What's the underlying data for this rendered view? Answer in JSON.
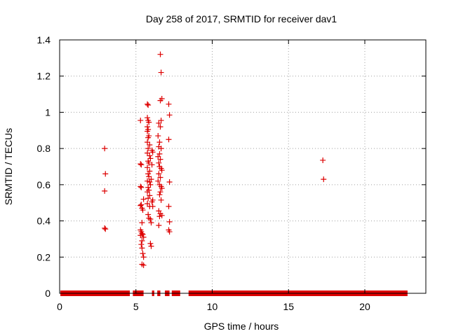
{
  "chart_data": {
    "type": "scatter",
    "title": "Day 258 of 2017, SRMTID for receiver dav1",
    "xlabel": "GPS time / hours",
    "ylabel": "SRMTID / TECUs",
    "xlim": [
      0,
      24
    ],
    "ylim": [
      0,
      1.4
    ],
    "xticks": [
      0,
      5,
      10,
      15,
      20
    ],
    "yticks": [
      0,
      0.2,
      0.4,
      0.6,
      0.8,
      1,
      1.2,
      1.4
    ],
    "xtick_labels": [
      "0",
      "5",
      "10",
      "15",
      "20"
    ],
    "ytick_labels": [
      "0",
      "0.2",
      "0.4",
      "0.6",
      "0.8",
      "1",
      "1.2",
      "1.4"
    ],
    "grid": true,
    "legend": false,
    "marker": "+",
    "color": "#dd0000",
    "baseline_zero_intervals": [
      [
        0.05,
        4.6
      ],
      [
        4.8,
        5.5
      ],
      [
        6.05,
        6.2
      ],
      [
        6.4,
        6.6
      ],
      [
        6.9,
        7.2
      ],
      [
        7.35,
        7.9
      ],
      [
        8.45,
        22.8
      ]
    ],
    "points": [
      [
        2.95,
        0.8
      ],
      [
        3.0,
        0.66
      ],
      [
        2.95,
        0.565
      ],
      [
        2.95,
        0.36
      ],
      [
        3.0,
        0.355
      ],
      [
        5.3,
        0.955
      ],
      [
        5.3,
        0.715
      ],
      [
        5.35,
        0.71
      ],
      [
        5.3,
        0.59
      ],
      [
        5.35,
        0.585
      ],
      [
        5.35,
        0.49
      ],
      [
        5.3,
        0.485
      ],
      [
        5.4,
        0.47
      ],
      [
        5.45,
        0.46
      ],
      [
        5.5,
        0.52
      ],
      [
        5.4,
        0.39
      ],
      [
        5.3,
        0.35
      ],
      [
        5.35,
        0.34
      ],
      [
        5.4,
        0.33
      ],
      [
        5.45,
        0.325
      ],
      [
        5.3,
        0.32
      ],
      [
        5.5,
        0.31
      ],
      [
        5.4,
        0.29
      ],
      [
        5.35,
        0.27
      ],
      [
        5.4,
        0.25
      ],
      [
        5.45,
        0.22
      ],
      [
        5.5,
        0.2
      ],
      [
        5.4,
        0.16
      ],
      [
        5.5,
        0.155
      ],
      [
        5.75,
        1.045
      ],
      [
        5.8,
        1.04
      ],
      [
        5.75,
        0.97
      ],
      [
        5.8,
        0.955
      ],
      [
        5.85,
        0.945
      ],
      [
        5.75,
        0.92
      ],
      [
        5.8,
        0.905
      ],
      [
        5.75,
        0.895
      ],
      [
        5.85,
        0.87
      ],
      [
        5.8,
        0.86
      ],
      [
        5.75,
        0.835
      ],
      [
        5.9,
        0.82
      ],
      [
        5.8,
        0.8
      ],
      [
        5.75,
        0.775
      ],
      [
        5.9,
        0.76
      ],
      [
        5.95,
        0.745
      ],
      [
        5.8,
        0.73
      ],
      [
        5.85,
        0.72
      ],
      [
        5.75,
        0.695
      ],
      [
        5.9,
        0.675
      ],
      [
        5.8,
        0.66
      ],
      [
        5.85,
        0.645
      ],
      [
        5.75,
        0.62
      ],
      [
        5.9,
        0.615
      ],
      [
        5.95,
        0.6
      ],
      [
        5.8,
        0.585
      ],
      [
        5.85,
        0.57
      ],
      [
        5.75,
        0.56
      ],
      [
        5.9,
        0.54
      ],
      [
        5.8,
        0.525
      ],
      [
        5.75,
        0.495
      ],
      [
        5.9,
        0.48
      ],
      [
        5.8,
        0.435
      ],
      [
        5.85,
        0.415
      ],
      [
        5.95,
        0.41
      ],
      [
        6.0,
        0.39
      ],
      [
        5.95,
        0.275
      ],
      [
        6.0,
        0.26
      ],
      [
        6.05,
        0.79
      ],
      [
        6.1,
        0.78
      ],
      [
        6.05,
        0.71
      ],
      [
        6.0,
        0.63
      ],
      [
        6.1,
        0.515
      ],
      [
        6.05,
        0.505
      ],
      [
        6.1,
        0.48
      ],
      [
        6.5,
        0.94
      ],
      [
        6.6,
        0.92
      ],
      [
        6.65,
        0.955
      ],
      [
        6.45,
        0.87
      ],
      [
        6.55,
        0.835
      ],
      [
        6.5,
        0.81
      ],
      [
        6.65,
        0.8
      ],
      [
        6.55,
        0.77
      ],
      [
        6.45,
        0.755
      ],
      [
        6.6,
        0.74
      ],
      [
        6.5,
        0.72
      ],
      [
        6.55,
        0.7
      ],
      [
        6.65,
        0.69
      ],
      [
        6.7,
        0.68
      ],
      [
        6.5,
        0.66
      ],
      [
        6.6,
        0.64
      ],
      [
        6.45,
        0.62
      ],
      [
        6.55,
        0.6
      ],
      [
        6.65,
        0.59
      ],
      [
        6.7,
        0.58
      ],
      [
        6.6,
        0.56
      ],
      [
        6.55,
        0.545
      ],
      [
        6.65,
        0.515
      ],
      [
        6.5,
        0.455
      ],
      [
        6.6,
        0.44
      ],
      [
        6.7,
        0.43
      ],
      [
        6.55,
        0.425
      ],
      [
        6.5,
        0.375
      ],
      [
        6.6,
        1.065
      ],
      [
        6.7,
        1.075
      ],
      [
        6.65,
        1.22
      ],
      [
        6.6,
        1.32
      ],
      [
        7.15,
        1.045
      ],
      [
        7.2,
        0.985
      ],
      [
        7.15,
        0.85
      ],
      [
        7.2,
        0.615
      ],
      [
        7.15,
        0.48
      ],
      [
        7.2,
        0.395
      ],
      [
        7.15,
        0.35
      ],
      [
        7.2,
        0.34
      ],
      [
        17.25,
        0.735
      ],
      [
        17.3,
        0.63
      ]
    ]
  }
}
